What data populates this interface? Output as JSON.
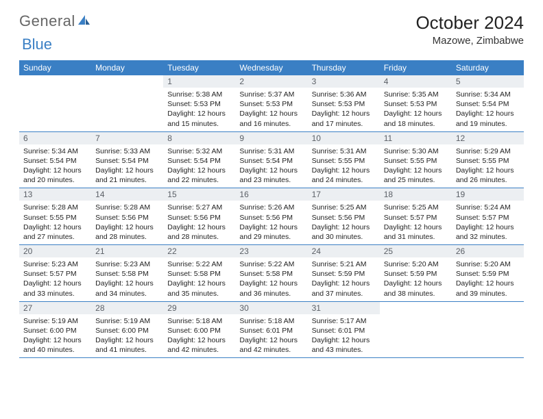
{
  "logo": {
    "text1": "General",
    "text2": "Blue"
  },
  "title": "October 2024",
  "location": "Mazowe, Zimbabwe",
  "colors": {
    "header_bg": "#3a7fc4",
    "header_text": "#ffffff",
    "daynum_bg": "#eceff2",
    "daynum_text": "#5a5f66",
    "border": "#3a7fc4",
    "body_text": "#222222",
    "page_bg": "#ffffff"
  },
  "typography": {
    "title_fontsize": 26,
    "location_fontsize": 15,
    "weekday_fontsize": 12,
    "daynum_fontsize": 12,
    "cell_fontsize": 10.5
  },
  "weekdays": [
    "Sunday",
    "Monday",
    "Tuesday",
    "Wednesday",
    "Thursday",
    "Friday",
    "Saturday"
  ],
  "weeks": [
    [
      {
        "blank": true
      },
      {
        "blank": true
      },
      {
        "day": "1",
        "sunrise": "Sunrise: 5:38 AM",
        "sunset": "Sunset: 5:53 PM",
        "daylight1": "Daylight: 12 hours",
        "daylight2": "and 15 minutes."
      },
      {
        "day": "2",
        "sunrise": "Sunrise: 5:37 AM",
        "sunset": "Sunset: 5:53 PM",
        "daylight1": "Daylight: 12 hours",
        "daylight2": "and 16 minutes."
      },
      {
        "day": "3",
        "sunrise": "Sunrise: 5:36 AM",
        "sunset": "Sunset: 5:53 PM",
        "daylight1": "Daylight: 12 hours",
        "daylight2": "and 17 minutes."
      },
      {
        "day": "4",
        "sunrise": "Sunrise: 5:35 AM",
        "sunset": "Sunset: 5:53 PM",
        "daylight1": "Daylight: 12 hours",
        "daylight2": "and 18 minutes."
      },
      {
        "day": "5",
        "sunrise": "Sunrise: 5:34 AM",
        "sunset": "Sunset: 5:54 PM",
        "daylight1": "Daylight: 12 hours",
        "daylight2": "and 19 minutes."
      }
    ],
    [
      {
        "day": "6",
        "sunrise": "Sunrise: 5:34 AM",
        "sunset": "Sunset: 5:54 PM",
        "daylight1": "Daylight: 12 hours",
        "daylight2": "and 20 minutes."
      },
      {
        "day": "7",
        "sunrise": "Sunrise: 5:33 AM",
        "sunset": "Sunset: 5:54 PM",
        "daylight1": "Daylight: 12 hours",
        "daylight2": "and 21 minutes."
      },
      {
        "day": "8",
        "sunrise": "Sunrise: 5:32 AM",
        "sunset": "Sunset: 5:54 PM",
        "daylight1": "Daylight: 12 hours",
        "daylight2": "and 22 minutes."
      },
      {
        "day": "9",
        "sunrise": "Sunrise: 5:31 AM",
        "sunset": "Sunset: 5:54 PM",
        "daylight1": "Daylight: 12 hours",
        "daylight2": "and 23 minutes."
      },
      {
        "day": "10",
        "sunrise": "Sunrise: 5:31 AM",
        "sunset": "Sunset: 5:55 PM",
        "daylight1": "Daylight: 12 hours",
        "daylight2": "and 24 minutes."
      },
      {
        "day": "11",
        "sunrise": "Sunrise: 5:30 AM",
        "sunset": "Sunset: 5:55 PM",
        "daylight1": "Daylight: 12 hours",
        "daylight2": "and 25 minutes."
      },
      {
        "day": "12",
        "sunrise": "Sunrise: 5:29 AM",
        "sunset": "Sunset: 5:55 PM",
        "daylight1": "Daylight: 12 hours",
        "daylight2": "and 26 minutes."
      }
    ],
    [
      {
        "day": "13",
        "sunrise": "Sunrise: 5:28 AM",
        "sunset": "Sunset: 5:55 PM",
        "daylight1": "Daylight: 12 hours",
        "daylight2": "and 27 minutes."
      },
      {
        "day": "14",
        "sunrise": "Sunrise: 5:28 AM",
        "sunset": "Sunset: 5:56 PM",
        "daylight1": "Daylight: 12 hours",
        "daylight2": "and 28 minutes."
      },
      {
        "day": "15",
        "sunrise": "Sunrise: 5:27 AM",
        "sunset": "Sunset: 5:56 PM",
        "daylight1": "Daylight: 12 hours",
        "daylight2": "and 28 minutes."
      },
      {
        "day": "16",
        "sunrise": "Sunrise: 5:26 AM",
        "sunset": "Sunset: 5:56 PM",
        "daylight1": "Daylight: 12 hours",
        "daylight2": "and 29 minutes."
      },
      {
        "day": "17",
        "sunrise": "Sunrise: 5:25 AM",
        "sunset": "Sunset: 5:56 PM",
        "daylight1": "Daylight: 12 hours",
        "daylight2": "and 30 minutes."
      },
      {
        "day": "18",
        "sunrise": "Sunrise: 5:25 AM",
        "sunset": "Sunset: 5:57 PM",
        "daylight1": "Daylight: 12 hours",
        "daylight2": "and 31 minutes."
      },
      {
        "day": "19",
        "sunrise": "Sunrise: 5:24 AM",
        "sunset": "Sunset: 5:57 PM",
        "daylight1": "Daylight: 12 hours",
        "daylight2": "and 32 minutes."
      }
    ],
    [
      {
        "day": "20",
        "sunrise": "Sunrise: 5:23 AM",
        "sunset": "Sunset: 5:57 PM",
        "daylight1": "Daylight: 12 hours",
        "daylight2": "and 33 minutes."
      },
      {
        "day": "21",
        "sunrise": "Sunrise: 5:23 AM",
        "sunset": "Sunset: 5:58 PM",
        "daylight1": "Daylight: 12 hours",
        "daylight2": "and 34 minutes."
      },
      {
        "day": "22",
        "sunrise": "Sunrise: 5:22 AM",
        "sunset": "Sunset: 5:58 PM",
        "daylight1": "Daylight: 12 hours",
        "daylight2": "and 35 minutes."
      },
      {
        "day": "23",
        "sunrise": "Sunrise: 5:22 AM",
        "sunset": "Sunset: 5:58 PM",
        "daylight1": "Daylight: 12 hours",
        "daylight2": "and 36 minutes."
      },
      {
        "day": "24",
        "sunrise": "Sunrise: 5:21 AM",
        "sunset": "Sunset: 5:59 PM",
        "daylight1": "Daylight: 12 hours",
        "daylight2": "and 37 minutes."
      },
      {
        "day": "25",
        "sunrise": "Sunrise: 5:20 AM",
        "sunset": "Sunset: 5:59 PM",
        "daylight1": "Daylight: 12 hours",
        "daylight2": "and 38 minutes."
      },
      {
        "day": "26",
        "sunrise": "Sunrise: 5:20 AM",
        "sunset": "Sunset: 5:59 PM",
        "daylight1": "Daylight: 12 hours",
        "daylight2": "and 39 minutes."
      }
    ],
    [
      {
        "day": "27",
        "sunrise": "Sunrise: 5:19 AM",
        "sunset": "Sunset: 6:00 PM",
        "daylight1": "Daylight: 12 hours",
        "daylight2": "and 40 minutes."
      },
      {
        "day": "28",
        "sunrise": "Sunrise: 5:19 AM",
        "sunset": "Sunset: 6:00 PM",
        "daylight1": "Daylight: 12 hours",
        "daylight2": "and 41 minutes."
      },
      {
        "day": "29",
        "sunrise": "Sunrise: 5:18 AM",
        "sunset": "Sunset: 6:00 PM",
        "daylight1": "Daylight: 12 hours",
        "daylight2": "and 42 minutes."
      },
      {
        "day": "30",
        "sunrise": "Sunrise: 5:18 AM",
        "sunset": "Sunset: 6:01 PM",
        "daylight1": "Daylight: 12 hours",
        "daylight2": "and 42 minutes."
      },
      {
        "day": "31",
        "sunrise": "Sunrise: 5:17 AM",
        "sunset": "Sunset: 6:01 PM",
        "daylight1": "Daylight: 12 hours",
        "daylight2": "and 43 minutes."
      },
      {
        "blank": true
      },
      {
        "blank": true
      }
    ]
  ]
}
